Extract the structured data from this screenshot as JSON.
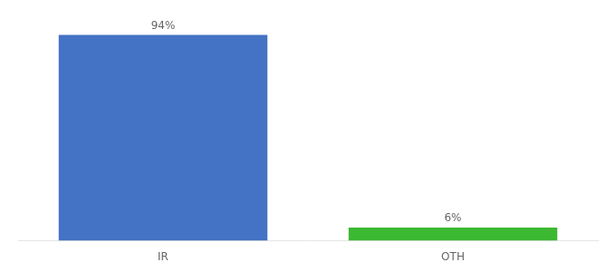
{
  "chart_data": {
    "type": "bar",
    "categories": [
      "IR",
      "OTH"
    ],
    "values": [
      94,
      6
    ],
    "colors": [
      "#4472c4",
      "#3cb832"
    ],
    "value_labels": [
      "94%",
      "6%"
    ],
    "data_labels": true,
    "ylim": [
      0,
      100
    ],
    "tick_labels": "x",
    "grid": false
  }
}
